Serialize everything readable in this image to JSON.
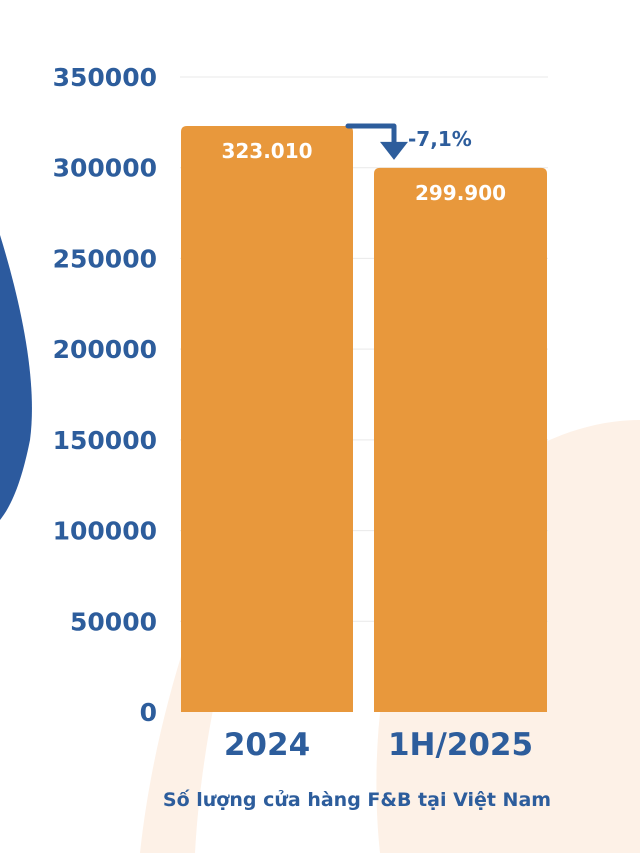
{
  "chart_data": {
    "type": "bar",
    "title": "",
    "caption": "Số lượng cửa hàng F&B tại Việt Nam",
    "categories": [
      "2024",
      "1H/2025"
    ],
    "values": [
      323010,
      299900
    ],
    "value_labels": [
      "323.010",
      "299.900"
    ],
    "change_label": "-7,1%",
    "ylim": [
      0,
      350000
    ],
    "yticks": [
      0,
      50000,
      100000,
      150000,
      200000,
      250000,
      300000,
      350000
    ],
    "ytick_labels": [
      "0",
      "50000",
      "100000",
      "150000",
      "200000",
      "250000",
      "300000",
      "350000"
    ],
    "xlabel": "",
    "ylabel": "",
    "grid": true,
    "colors": {
      "bar": "#e8983c",
      "axis_text": "#2d5d9c",
      "accent": "#2d5d9c",
      "grid": "#e9e9e9",
      "decor_blue": "#2c5a9e",
      "decor_peach": "#fdf1e7"
    }
  }
}
